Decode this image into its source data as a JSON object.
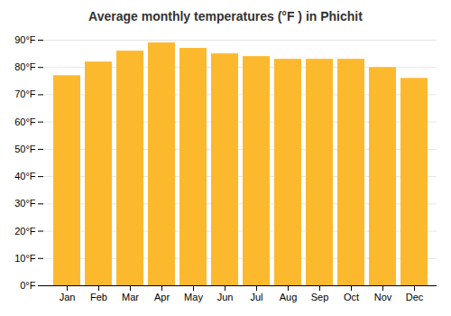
{
  "chart_data": {
    "type": "bar",
    "title": "Average monthly temperatures (°F ) in Phichit",
    "categories": [
      "Jan",
      "Feb",
      "Mar",
      "Apr",
      "May",
      "Jun",
      "Jul",
      "Aug",
      "Sep",
      "Oct",
      "Nov",
      "Dec"
    ],
    "values": [
      77,
      82,
      86,
      89,
      87,
      85,
      84,
      83,
      83,
      83,
      80,
      76
    ],
    "color": "#FDB92E",
    "ylim": [
      0,
      90
    ],
    "yticks": [
      {
        "value": 0,
        "label": "0°F"
      },
      {
        "value": 10,
        "label": "10°F"
      },
      {
        "value": 20,
        "label": "20°F"
      },
      {
        "value": 30,
        "label": "30°F"
      },
      {
        "value": 40,
        "label": "40°F"
      },
      {
        "value": 50,
        "label": "50°F"
      },
      {
        "value": 60,
        "label": "60°F"
      },
      {
        "value": 70,
        "label": "70°F"
      },
      {
        "value": 80,
        "label": "80°F"
      },
      {
        "value": 90,
        "label": "90°F"
      }
    ],
    "grid": true
  }
}
